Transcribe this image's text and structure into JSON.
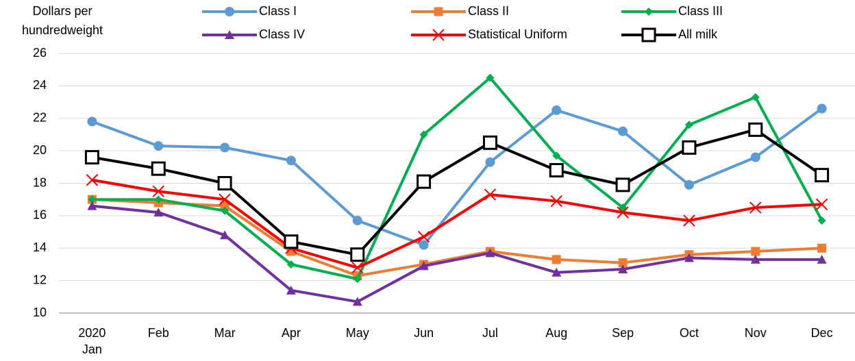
{
  "chart_data": {
    "type": "line",
    "y_label": [
      "Dollars per",
      "hundredweight"
    ],
    "year": "2020",
    "categories": [
      "Jan",
      "Feb",
      "Mar",
      "Apr",
      "May",
      "Jun",
      "Jul",
      "Aug",
      "Sep",
      "Oct",
      "Nov",
      "Dec"
    ],
    "series": [
      {
        "name": "Class I",
        "color": "#5b9bd5",
        "marker": "circle",
        "values": [
          21.8,
          20.3,
          20.2,
          19.4,
          15.7,
          14.2,
          19.3,
          22.5,
          21.2,
          17.9,
          19.6,
          22.6
        ]
      },
      {
        "name": "Class II",
        "color": "#ed7d31",
        "marker": "square",
        "values": [
          17.0,
          16.8,
          16.6,
          13.8,
          12.3,
          13.0,
          13.8,
          13.3,
          13.1,
          13.6,
          13.8,
          14.0
        ]
      },
      {
        "name": "Class III",
        "color": "#00b050",
        "marker": "diamond",
        "values": [
          17.0,
          17.0,
          16.3,
          13.0,
          12.1,
          21.0,
          24.5,
          19.7,
          16.5,
          21.6,
          23.3,
          15.7
        ]
      },
      {
        "name": "Class IV",
        "color": "#7030a0",
        "marker": "triangle",
        "values": [
          16.6,
          16.2,
          14.8,
          11.4,
          10.7,
          12.9,
          13.7,
          12.5,
          12.7,
          13.4,
          13.3,
          13.3
        ]
      },
      {
        "name": "Statistical Uniform",
        "color": "#ff0000",
        "marker": "x",
        "values": [
          18.2,
          17.5,
          17.0,
          14.0,
          12.8,
          14.7,
          17.3,
          16.9,
          16.2,
          15.7,
          16.5,
          16.7
        ]
      },
      {
        "name": "All milk",
        "color": "#000000",
        "marker": "open-square",
        "values": [
          19.6,
          18.9,
          18.0,
          14.4,
          13.6,
          18.1,
          20.5,
          18.8,
          17.9,
          20.2,
          21.3,
          18.5
        ]
      }
    ],
    "ylim": [
      10,
      26
    ],
    "yticks": [
      10,
      12,
      14,
      16,
      18,
      20,
      22,
      24,
      26
    ],
    "grid": true
  }
}
